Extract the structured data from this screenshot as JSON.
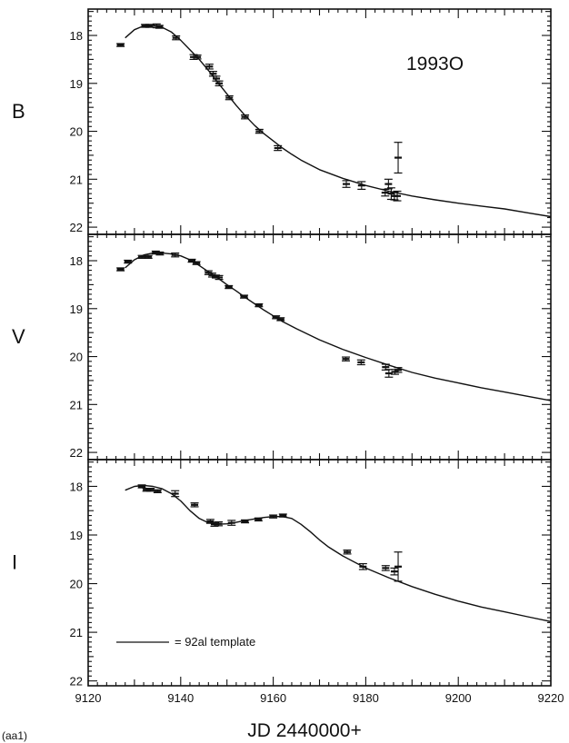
{
  "figure": {
    "object_name": "1993O",
    "corner_label": "(aa1)",
    "legend_label": "= 92al template"
  },
  "chart_data": {
    "type": "scatter",
    "xlabel": "JD 2440000+",
    "xlim": [
      9120,
      9220
    ],
    "xticks": [
      9120,
      9140,
      9160,
      9180,
      9200,
      9220
    ],
    "yticks": [
      18,
      19,
      20,
      21,
      22
    ],
    "y_inverted": true,
    "grid": false,
    "panels": [
      {
        "band": "B",
        "ylim": [
          22.15,
          17.45
        ],
        "points": [
          {
            "x": 9127.0,
            "y": 18.2,
            "err": 0.03
          },
          {
            "x": 9132.3,
            "y": 17.8,
            "err": 0.03
          },
          {
            "x": 9133.2,
            "y": 17.8,
            "err": 0.03
          },
          {
            "x": 9134.8,
            "y": 17.8,
            "err": 0.04
          },
          {
            "x": 9135.4,
            "y": 17.82,
            "err": 0.03
          },
          {
            "x": 9139.0,
            "y": 18.05,
            "err": 0.04
          },
          {
            "x": 9142.8,
            "y": 18.45,
            "err": 0.05
          },
          {
            "x": 9143.6,
            "y": 18.45,
            "err": 0.04
          },
          {
            "x": 9146.2,
            "y": 18.65,
            "err": 0.05
          },
          {
            "x": 9147.0,
            "y": 18.8,
            "err": 0.05
          },
          {
            "x": 9147.7,
            "y": 18.9,
            "err": 0.05
          },
          {
            "x": 9148.3,
            "y": 19.0,
            "err": 0.05
          },
          {
            "x": 9150.5,
            "y": 19.3,
            "err": 0.04
          },
          {
            "x": 9153.9,
            "y": 19.7,
            "err": 0.04
          },
          {
            "x": 9157.0,
            "y": 20.0,
            "err": 0.04
          },
          {
            "x": 9161.0,
            "y": 20.35,
            "err": 0.05
          },
          {
            "x": 9175.8,
            "y": 21.1,
            "err": 0.07
          },
          {
            "x": 9179.1,
            "y": 21.13,
            "err": 0.08
          },
          {
            "x": 9184.2,
            "y": 21.28,
            "err": 0.07
          },
          {
            "x": 9184.9,
            "y": 21.1,
            "err": 0.1
          },
          {
            "x": 9185.5,
            "y": 21.3,
            "err": 0.12
          },
          {
            "x": 9186.2,
            "y": 21.35,
            "err": 0.08
          },
          {
            "x": 9186.8,
            "y": 21.35,
            "err": 0.1
          },
          {
            "x": 9187.0,
            "y": 20.55,
            "err": 0.32
          }
        ],
        "template": [
          [
            9128,
            18.05
          ],
          [
            9130,
            17.88
          ],
          [
            9132,
            17.8
          ],
          [
            9134,
            17.78
          ],
          [
            9136,
            17.83
          ],
          [
            9138,
            17.93
          ],
          [
            9140,
            18.1
          ],
          [
            9142,
            18.3
          ],
          [
            9144,
            18.5
          ],
          [
            9146,
            18.73
          ],
          [
            9148,
            18.98
          ],
          [
            9150,
            19.22
          ],
          [
            9152,
            19.46
          ],
          [
            9154,
            19.68
          ],
          [
            9156,
            19.88
          ],
          [
            9158,
            20.05
          ],
          [
            9160,
            20.2
          ],
          [
            9162,
            20.35
          ],
          [
            9164,
            20.48
          ],
          [
            9166,
            20.6
          ],
          [
            9170,
            20.8
          ],
          [
            9175,
            20.98
          ],
          [
            9180,
            21.13
          ],
          [
            9185,
            21.25
          ],
          [
            9190,
            21.35
          ],
          [
            9195,
            21.43
          ],
          [
            9200,
            21.5
          ],
          [
            9205,
            21.56
          ],
          [
            9210,
            21.62
          ],
          [
            9215,
            21.7
          ],
          [
            9220,
            21.78
          ]
        ]
      },
      {
        "band": "V",
        "ylim": [
          22.15,
          17.45
        ],
        "points": [
          {
            "x": 9127.0,
            "y": 18.18,
            "err": 0.03
          },
          {
            "x": 9128.6,
            "y": 18.02,
            "err": 0.03
          },
          {
            "x": 9131.6,
            "y": 17.92,
            "err": 0.03
          },
          {
            "x": 9133.0,
            "y": 17.92,
            "err": 0.03
          },
          {
            "x": 9134.6,
            "y": 17.83,
            "err": 0.03
          },
          {
            "x": 9135.5,
            "y": 17.85,
            "err": 0.03
          },
          {
            "x": 9138.8,
            "y": 17.88,
            "err": 0.04
          },
          {
            "x": 9142.4,
            "y": 18.0,
            "err": 0.03
          },
          {
            "x": 9143.4,
            "y": 18.05,
            "err": 0.03
          },
          {
            "x": 9146.0,
            "y": 18.25,
            "err": 0.04
          },
          {
            "x": 9146.8,
            "y": 18.3,
            "err": 0.04
          },
          {
            "x": 9147.6,
            "y": 18.33,
            "err": 0.03
          },
          {
            "x": 9148.3,
            "y": 18.35,
            "err": 0.04
          },
          {
            "x": 9150.4,
            "y": 18.55,
            "err": 0.03
          },
          {
            "x": 9153.7,
            "y": 18.75,
            "err": 0.03
          },
          {
            "x": 9156.9,
            "y": 18.93,
            "err": 0.03
          },
          {
            "x": 9160.6,
            "y": 19.18,
            "err": 0.03
          },
          {
            "x": 9161.6,
            "y": 19.22,
            "err": 0.03
          },
          {
            "x": 9175.7,
            "y": 20.05,
            "err": 0.04
          },
          {
            "x": 9179.0,
            "y": 20.12,
            "err": 0.05
          },
          {
            "x": 9184.3,
            "y": 20.22,
            "err": 0.06
          },
          {
            "x": 9185.0,
            "y": 20.35,
            "err": 0.08
          },
          {
            "x": 9186.3,
            "y": 20.32,
            "err": 0.05
          },
          {
            "x": 9187.0,
            "y": 20.28,
            "err": 0.05
          }
        ],
        "template": [
          [
            9128,
            18.15
          ],
          [
            9130,
            17.98
          ],
          [
            9132,
            17.88
          ],
          [
            9134,
            17.84
          ],
          [
            9136,
            17.84
          ],
          [
            9138,
            17.86
          ],
          [
            9140,
            17.9
          ],
          [
            9142,
            17.98
          ],
          [
            9144,
            18.1
          ],
          [
            9146,
            18.23
          ],
          [
            9148,
            18.36
          ],
          [
            9150,
            18.5
          ],
          [
            9152,
            18.63
          ],
          [
            9154,
            18.77
          ],
          [
            9156,
            18.9
          ],
          [
            9158,
            19.03
          ],
          [
            9160,
            19.15
          ],
          [
            9162,
            19.27
          ],
          [
            9165,
            19.42
          ],
          [
            9170,
            19.65
          ],
          [
            9175,
            19.85
          ],
          [
            9180,
            20.02
          ],
          [
            9185,
            20.18
          ],
          [
            9190,
            20.33
          ],
          [
            9195,
            20.45
          ],
          [
            9200,
            20.55
          ],
          [
            9205,
            20.65
          ],
          [
            9210,
            20.74
          ],
          [
            9215,
            20.83
          ],
          [
            9220,
            20.92
          ]
        ]
      },
      {
        "band": "I",
        "ylim": [
          22.1,
          17.45
        ],
        "points": [
          {
            "x": 9131.6,
            "y": 18.0,
            "err": 0.03
          },
          {
            "x": 9132.6,
            "y": 18.07,
            "err": 0.03
          },
          {
            "x": 9133.5,
            "y": 18.07,
            "err": 0.03
          },
          {
            "x": 9135.0,
            "y": 18.1,
            "err": 0.03
          },
          {
            "x": 9138.8,
            "y": 18.15,
            "err": 0.06
          },
          {
            "x": 9143.0,
            "y": 18.38,
            "err": 0.04
          },
          {
            "x": 9146.4,
            "y": 18.72,
            "err": 0.04
          },
          {
            "x": 9147.3,
            "y": 18.78,
            "err": 0.04
          },
          {
            "x": 9148.2,
            "y": 18.77,
            "err": 0.04
          },
          {
            "x": 9151.0,
            "y": 18.75,
            "err": 0.05
          },
          {
            "x": 9153.9,
            "y": 18.72,
            "err": 0.03
          },
          {
            "x": 9156.8,
            "y": 18.68,
            "err": 0.03
          },
          {
            "x": 9160.0,
            "y": 18.62,
            "err": 0.03
          },
          {
            "x": 9162.1,
            "y": 18.6,
            "err": 0.03
          },
          {
            "x": 9176.0,
            "y": 19.35,
            "err": 0.04
          },
          {
            "x": 9179.4,
            "y": 19.65,
            "err": 0.06
          },
          {
            "x": 9184.3,
            "y": 19.68,
            "err": 0.05
          },
          {
            "x": 9186.2,
            "y": 19.75,
            "err": 0.07
          },
          {
            "x": 9187.0,
            "y": 19.65,
            "err": 0.3
          }
        ],
        "template": [
          [
            9128,
            18.08
          ],
          [
            9130,
            18.0
          ],
          [
            9132,
            17.98
          ],
          [
            9134,
            18.0
          ],
          [
            9136,
            18.05
          ],
          [
            9138,
            18.15
          ],
          [
            9140,
            18.3
          ],
          [
            9142,
            18.5
          ],
          [
            9144,
            18.66
          ],
          [
            9146,
            18.75
          ],
          [
            9148,
            18.78
          ],
          [
            9150,
            18.77
          ],
          [
            9152,
            18.74
          ],
          [
            9154,
            18.7
          ],
          [
            9156,
            18.67
          ],
          [
            9158,
            18.64
          ],
          [
            9160,
            18.62
          ],
          [
            9162,
            18.62
          ],
          [
            9164,
            18.66
          ],
          [
            9166,
            18.78
          ],
          [
            9168,
            18.93
          ],
          [
            9170,
            19.1
          ],
          [
            9172,
            19.25
          ],
          [
            9175,
            19.43
          ],
          [
            9180,
            19.68
          ],
          [
            9185,
            19.88
          ],
          [
            9190,
            20.06
          ],
          [
            9195,
            20.22
          ],
          [
            9200,
            20.36
          ],
          [
            9205,
            20.48
          ],
          [
            9210,
            20.58
          ],
          [
            9215,
            20.68
          ],
          [
            9220,
            20.78
          ]
        ]
      }
    ]
  }
}
